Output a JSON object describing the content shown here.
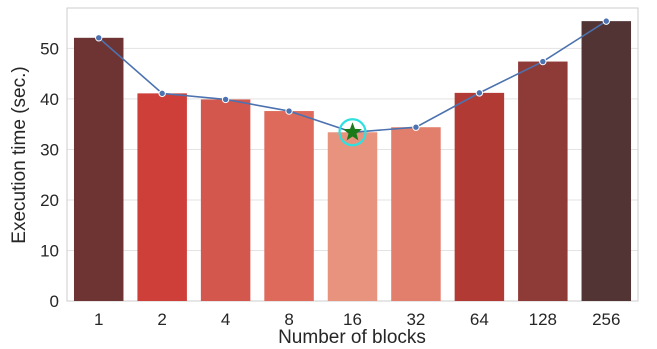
{
  "chart_data": {
    "type": "bar",
    "title": "",
    "xlabel": "Number of blocks",
    "ylabel": "Execution time (sec.)",
    "categories": [
      "1",
      "2",
      "4",
      "8",
      "16",
      "32",
      "64",
      "128",
      "256"
    ],
    "values": [
      52.1,
      41.1,
      39.9,
      37.6,
      33.4,
      34.4,
      41.2,
      47.4,
      55.4
    ],
    "line_values": [
      52.1,
      41.1,
      39.9,
      37.6,
      33.4,
      34.4,
      41.2,
      47.4,
      55.4
    ],
    "highlight": {
      "category": "16",
      "value": 33.4,
      "marker": "star"
    },
    "ylim": [
      0,
      58
    ],
    "yticks": [
      0,
      10,
      20,
      30,
      40,
      50
    ],
    "grid": true,
    "bar_colors": [
      "#6e3434",
      "#cd3f38",
      "#d3574c",
      "#de6a5c",
      "#e8937e",
      "#e17e6c",
      "#b13a34",
      "#8e3a37",
      "#523434"
    ],
    "line_color": "#4c72b0",
    "star_color": "#1a7a1a",
    "circle_color": "#2ee0e0"
  }
}
